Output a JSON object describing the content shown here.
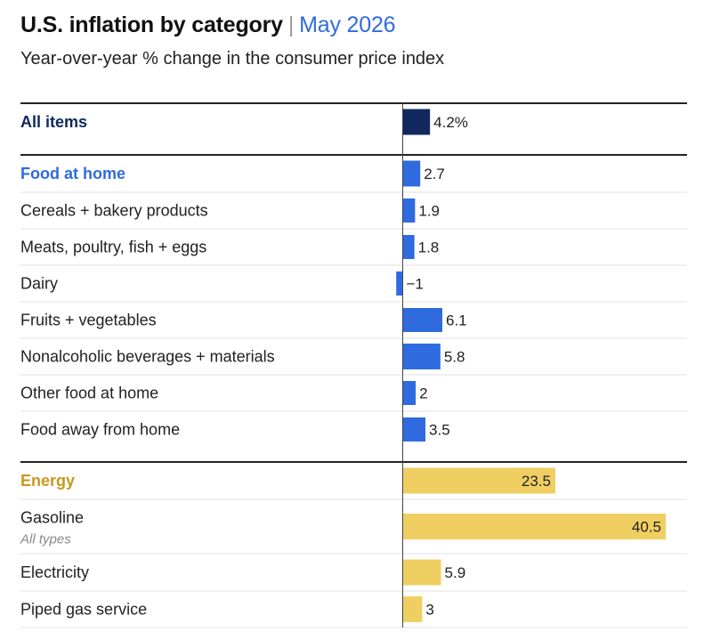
{
  "header": {
    "title": "U.S. inflation by category",
    "separator": "|",
    "date": "May 2026",
    "subtitle": "Year-over-year % change in the consumer price index"
  },
  "colors": {
    "all_items": "#10285e",
    "food": "#2f6bdf",
    "energy": "#f0cf62",
    "energy_label": "#c9981f",
    "date": "#2f6bdf",
    "text": "#222222",
    "heading_rule": "#222222",
    "row_rule": "#e2e2e2"
  },
  "chart_data": {
    "type": "bar",
    "orientation": "horizontal",
    "xlim": [
      -1,
      40.5
    ],
    "rows": [
      {
        "label": "All items",
        "sublabel": "",
        "value": 4.2,
        "value_label": "4.2%",
        "group": "all_items",
        "heading": true
      },
      {
        "label": "Food at home",
        "sublabel": "",
        "value": 2.7,
        "value_label": "2.7",
        "group": "food",
        "heading": true
      },
      {
        "label": "Cereals + bakery products",
        "sublabel": "",
        "value": 1.9,
        "value_label": "1.9",
        "group": "food",
        "heading": false
      },
      {
        "label": "Meats, poultry, fish + eggs",
        "sublabel": "",
        "value": 1.8,
        "value_label": "1.8",
        "group": "food",
        "heading": false
      },
      {
        "label": "Dairy",
        "sublabel": "",
        "value": -1,
        "value_label": "−1",
        "group": "food",
        "heading": false
      },
      {
        "label": "Fruits + vegetables",
        "sublabel": "",
        "value": 6.1,
        "value_label": "6.1",
        "group": "food",
        "heading": false
      },
      {
        "label": "Nonalcoholic beverages + materials",
        "sublabel": "",
        "value": 5.8,
        "value_label": "5.8",
        "group": "food",
        "heading": false
      },
      {
        "label": "Other food at home",
        "sublabel": "",
        "value": 2,
        "value_label": "2",
        "group": "food",
        "heading": false
      },
      {
        "label": "Food away from home",
        "sublabel": "",
        "value": 3.5,
        "value_label": "3.5",
        "group": "food",
        "heading": false
      },
      {
        "label": "Energy",
        "sublabel": "",
        "value": 23.5,
        "value_label": "23.5",
        "group": "energy",
        "heading": true
      },
      {
        "label": "Gasoline",
        "sublabel": "All types",
        "value": 40.5,
        "value_label": "40.5",
        "group": "energy",
        "heading": false
      },
      {
        "label": "Electricity",
        "sublabel": "",
        "value": 5.9,
        "value_label": "5.9",
        "group": "energy",
        "heading": false
      },
      {
        "label": "Piped gas service",
        "sublabel": "",
        "value": 3,
        "value_label": "3",
        "group": "energy",
        "heading": false
      }
    ]
  }
}
